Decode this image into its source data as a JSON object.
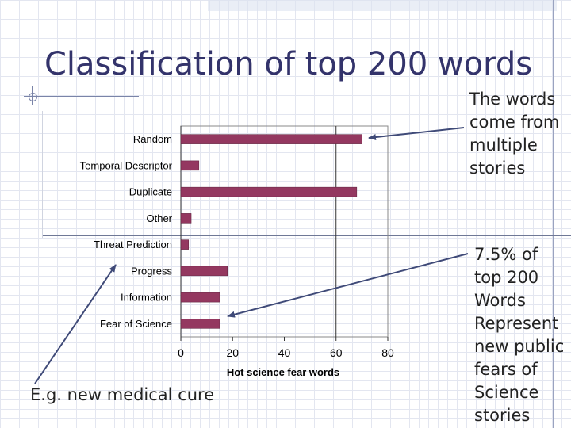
{
  "slide": {
    "title": "Classification of top 200 words",
    "note_top": "The words come from multiple stories",
    "note_right": "7.5% of top 200 Words Represent new public fears of Science stories",
    "note_bottom": "E.g. new medical cure"
  },
  "colors": {
    "bar": "#943860",
    "title": "#33336b",
    "arrow": "#3f4a78"
  },
  "chart_data": {
    "type": "bar",
    "orientation": "horizontal",
    "categories": [
      "Random",
      "Temporal Descriptor",
      "Duplicate",
      "Other",
      "Threat Prediction",
      "Progress",
      "Information",
      "Fear of Science"
    ],
    "values": [
      70,
      7,
      68,
      4,
      3,
      18,
      15,
      15
    ],
    "xlabel": "Hot science fear words",
    "ylabel": "",
    "xlim": [
      0,
      80
    ],
    "xticks": [
      0,
      20,
      40,
      60,
      80
    ],
    "grid": "vertical line at 60"
  }
}
